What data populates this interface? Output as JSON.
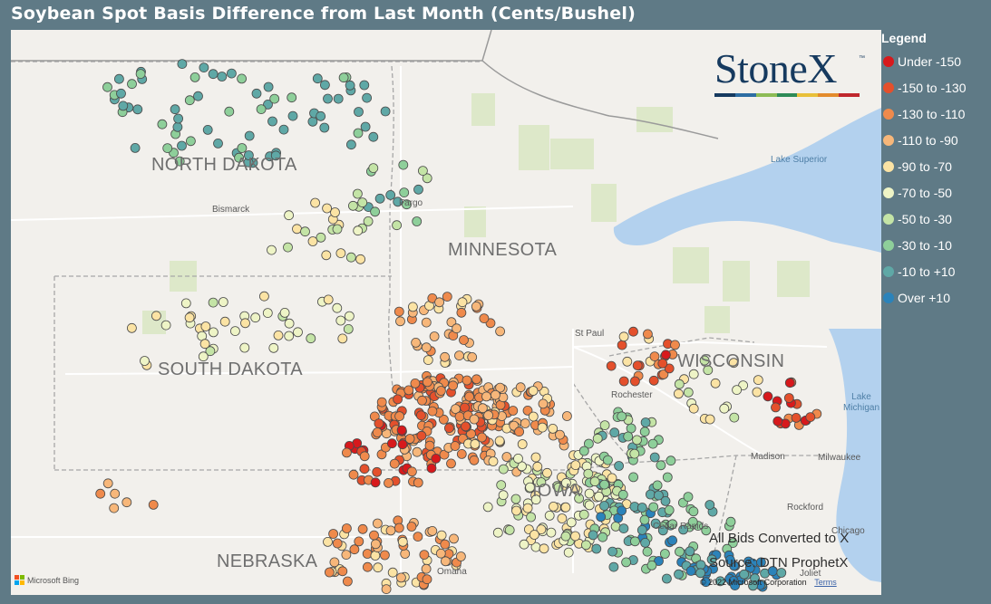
{
  "title": "Soybean Spot Basis Difference from Last Month (Cents/Bushel)",
  "legend": {
    "title": "Legend",
    "items": [
      {
        "label": "Under -150",
        "color": "#d7191c"
      },
      {
        "label": "-150 to -130",
        "color": "#e4502c"
      },
      {
        "label": "-130 to -110",
        "color": "#ef8a4c"
      },
      {
        "label": "-110 to -90",
        "color": "#f7b77a"
      },
      {
        "label": "-90 to -70",
        "color": "#fbe3a4"
      },
      {
        "label": "-70 to -50",
        "color": "#eef4c6"
      },
      {
        "label": "-50 to -30",
        "color": "#c4e4a6"
      },
      {
        "label": "-30 to -10",
        "color": "#8ecf9a"
      },
      {
        "label": "-10 to +10",
        "color": "#5fa8a6"
      },
      {
        "label": "Over +10",
        "color": "#2b83ba"
      }
    ]
  },
  "logo": {
    "text": "StoneX",
    "tm": "™",
    "bar_colors": [
      "#163a5f",
      "#2d6da3",
      "#8dbb55",
      "#2e8b57",
      "#e8c03a",
      "#e38b2c",
      "#c0272d"
    ]
  },
  "states": [
    {
      "name": "NORTH DAKOTA"
    },
    {
      "name": "MINNESOTA"
    },
    {
      "name": "SOUTH DAKOTA"
    },
    {
      "name": "WISCONSIN"
    },
    {
      "name": "NEBRASKA"
    },
    {
      "name": "IOWA"
    }
  ],
  "cities": [
    "Bismarck",
    "Fargo",
    "St Paul",
    "Rochester",
    "Madison",
    "Milwaukee",
    "Rockford",
    "Chicago",
    "Cedar Rapids",
    "Omaha",
    "Joliet"
  ],
  "water": [
    "Lake Superior",
    "Lake Michigan"
  ],
  "notes": {
    "converted": "All Bids Converted to X",
    "source": "Source: DTN ProphetX"
  },
  "map_credit": {
    "copyright": "© 2022 Microsoft Corporation",
    "terms": "Terms",
    "brand": "Microsoft Bing"
  },
  "map_colors": {
    "land": "#f2f0ec",
    "water": "#b3d1ee",
    "forest": "#dde8c9",
    "road": "#ffffff",
    "border": "#9e9e9e"
  }
}
